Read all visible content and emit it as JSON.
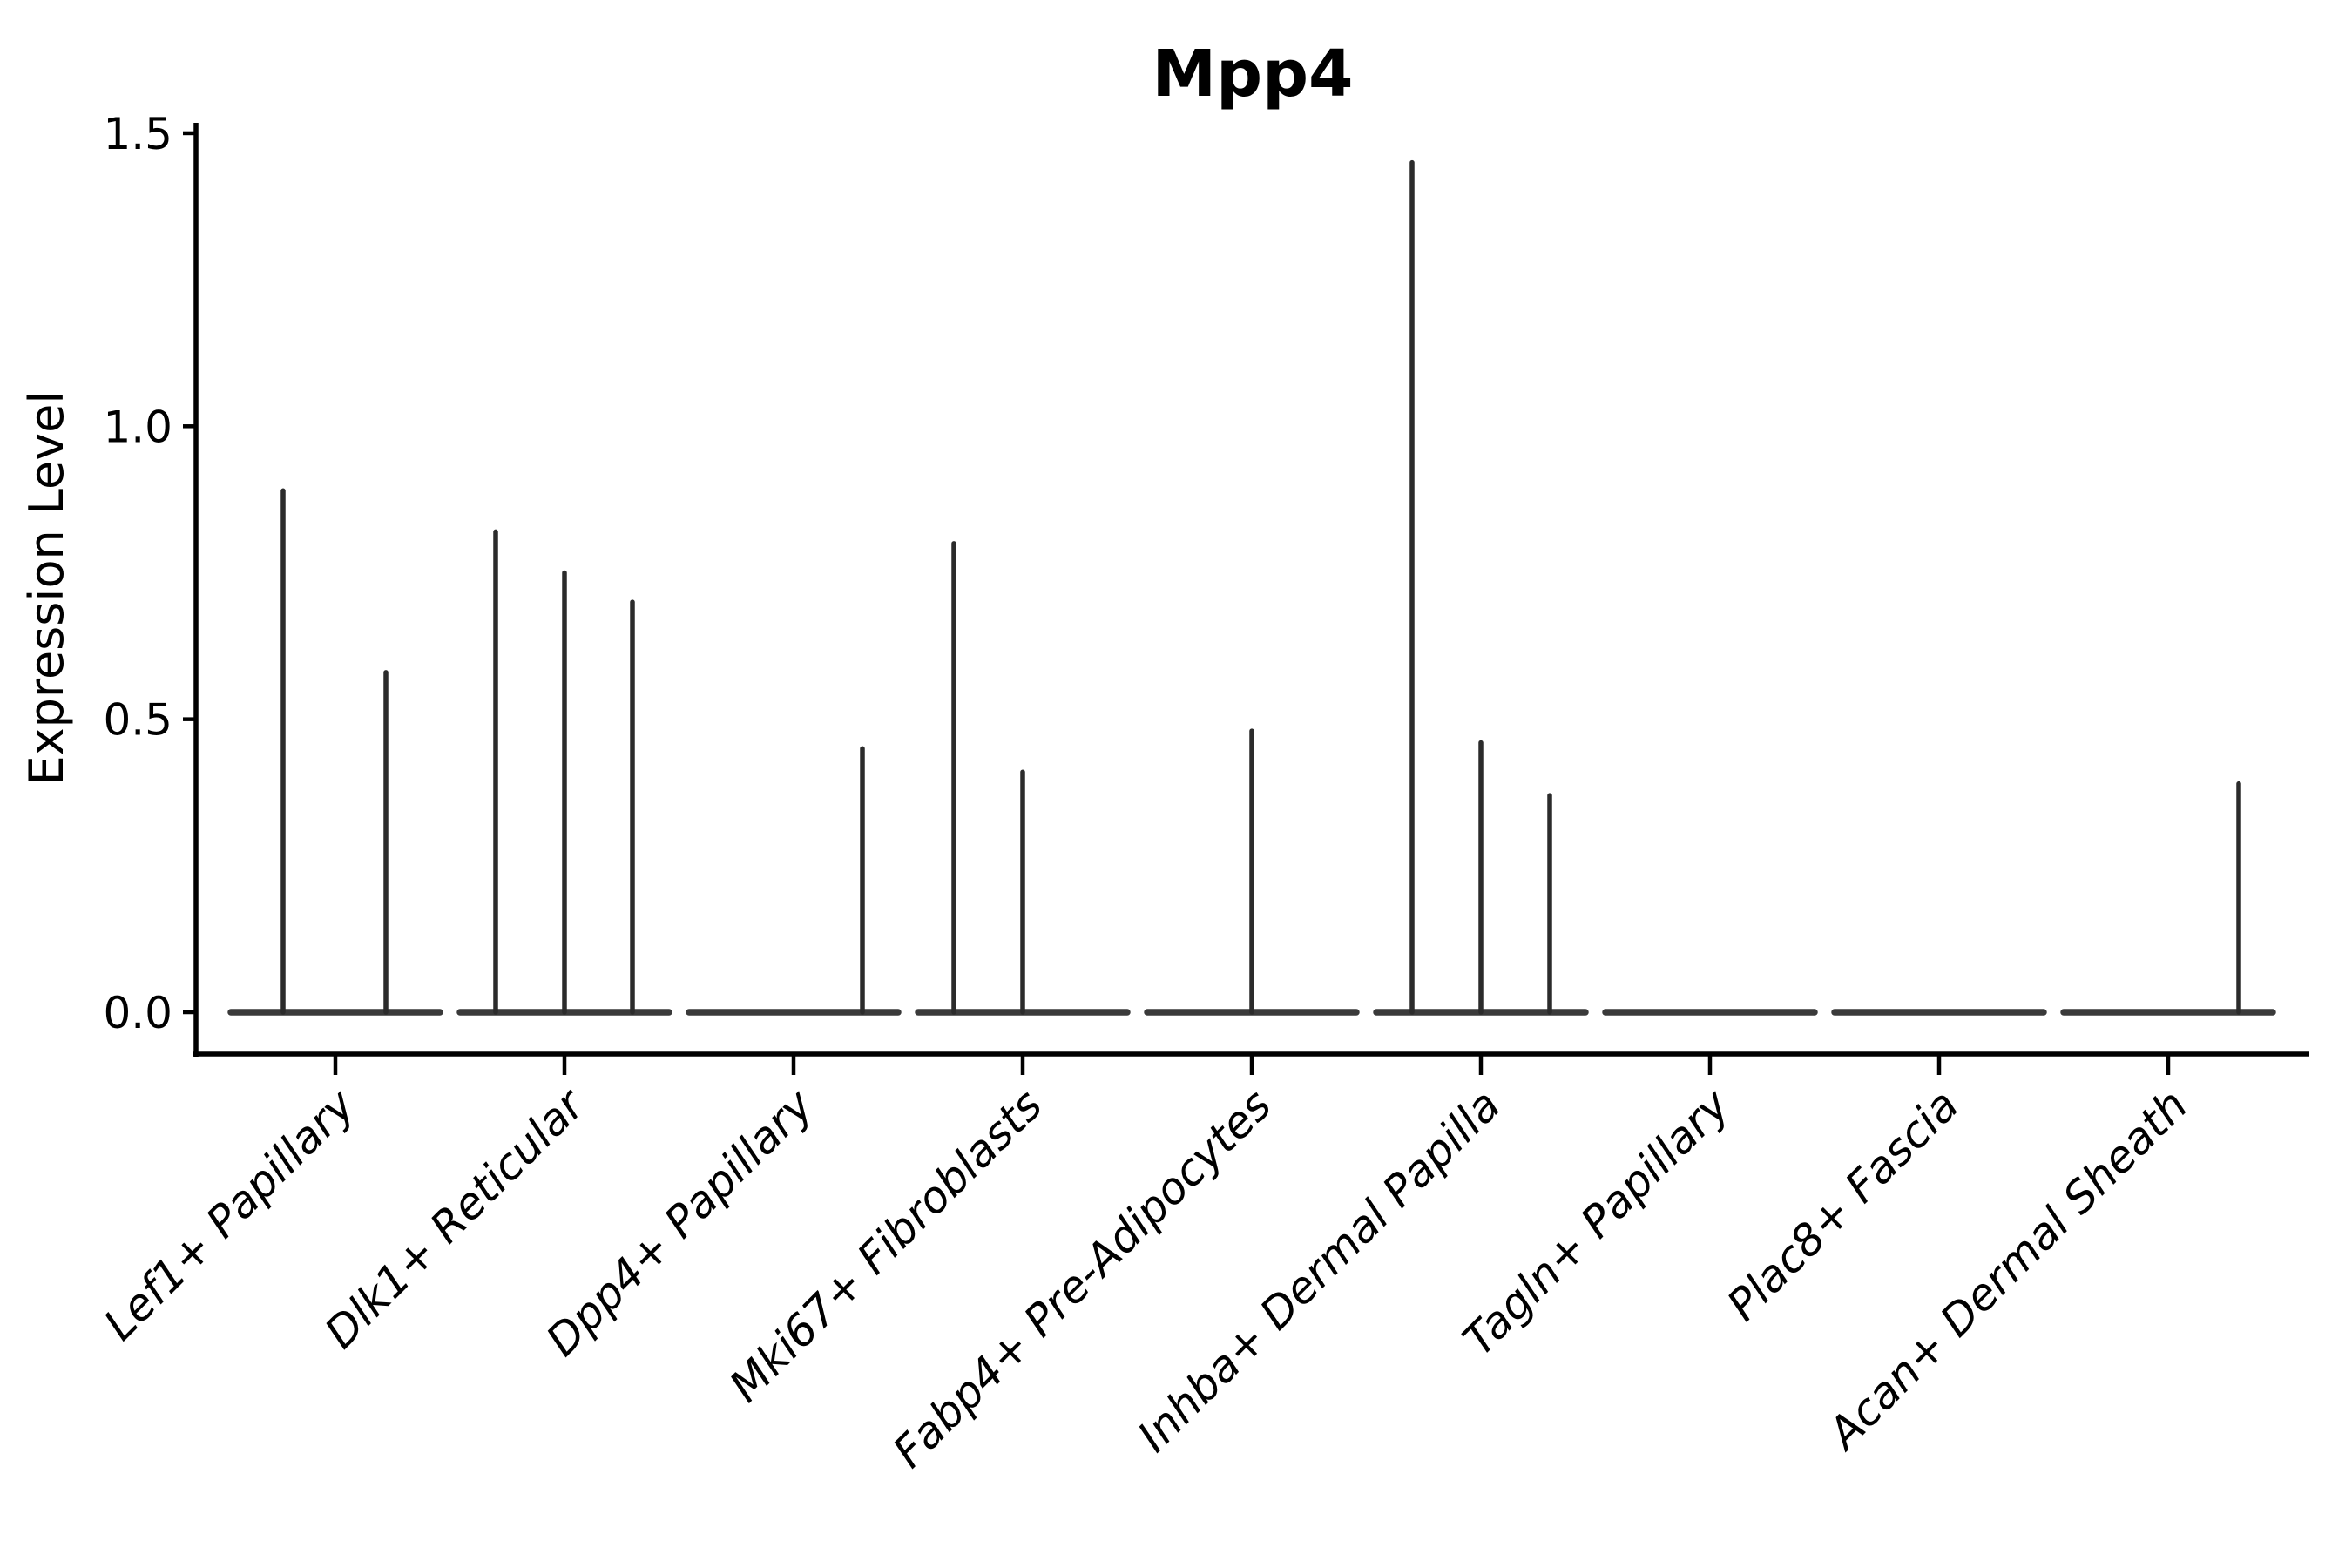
{
  "chart_data": {
    "type": "violin",
    "title": "Mpp4",
    "xlabel": "",
    "ylabel": "Expression Level",
    "ylim": [
      0.0,
      1.5
    ],
    "yticks": [
      0.0,
      0.5,
      1.0,
      1.5
    ],
    "ytick_labels": [
      "0.0",
      "0.5",
      "1.0",
      "1.5"
    ],
    "grid": false,
    "legend": "none",
    "x_tick_label_rotation_deg": 45,
    "categories": [
      "Lef1+ Papillary",
      "Dlk1+ Reticular",
      "Dpp4+ Papillary",
      "Mki67+ Fibroblasts",
      "Fabp4+ Pre-Adipocytes",
      "Inhba+ Dermal Papilla",
      "Tagln+ Papillary",
      "Plac8+ Fascia",
      "Acan+ Dermal Sheath"
    ],
    "series": [
      {
        "name": "Lef1+ Papillary",
        "baseline_value": 0.0,
        "spikes": [
          {
            "dx": -60,
            "value": 0.89
          },
          {
            "dx": 58,
            "value": 0.58
          }
        ]
      },
      {
        "name": "Dlk1+ Reticular",
        "baseline_value": 0.0,
        "spikes": [
          {
            "dx": -79,
            "value": 0.82
          },
          {
            "dx": 0,
            "value": 0.75
          },
          {
            "dx": 78,
            "value": 0.7
          }
        ]
      },
      {
        "name": "Dpp4+ Papillary",
        "baseline_value": 0.0,
        "spikes": [
          {
            "dx": 79,
            "value": 0.45
          }
        ]
      },
      {
        "name": "Mki67+ Fibroblasts",
        "baseline_value": 0.0,
        "spikes": [
          {
            "dx": -79,
            "value": 0.8
          },
          {
            "dx": 0,
            "value": 0.41
          }
        ]
      },
      {
        "name": "Fabp4+ Pre-Adipocytes",
        "baseline_value": 0.0,
        "spikes": [
          {
            "dx": 0,
            "value": 0.48
          }
        ]
      },
      {
        "name": "Inhba+ Dermal Papilla",
        "baseline_value": 0.0,
        "spikes": [
          {
            "dx": -79,
            "value": 1.45
          },
          {
            "dx": 0,
            "value": 0.46
          },
          {
            "dx": 79,
            "value": 0.37
          }
        ]
      },
      {
        "name": "Tagln+ Papillary",
        "baseline_value": 0.0,
        "spikes": []
      },
      {
        "name": "Plac8+ Fascia",
        "baseline_value": 0.0,
        "spikes": []
      },
      {
        "name": "Acan+ Dermal Sheath",
        "baseline_value": 0.0,
        "spikes": [
          {
            "dx": 81,
            "value": 0.39
          }
        ]
      }
    ],
    "colors": {
      "spike": "#2b2b2b",
      "baseline": "#3a3a3a",
      "axis": "#000000",
      "text": "#000000",
      "background": "#ffffff"
    }
  }
}
